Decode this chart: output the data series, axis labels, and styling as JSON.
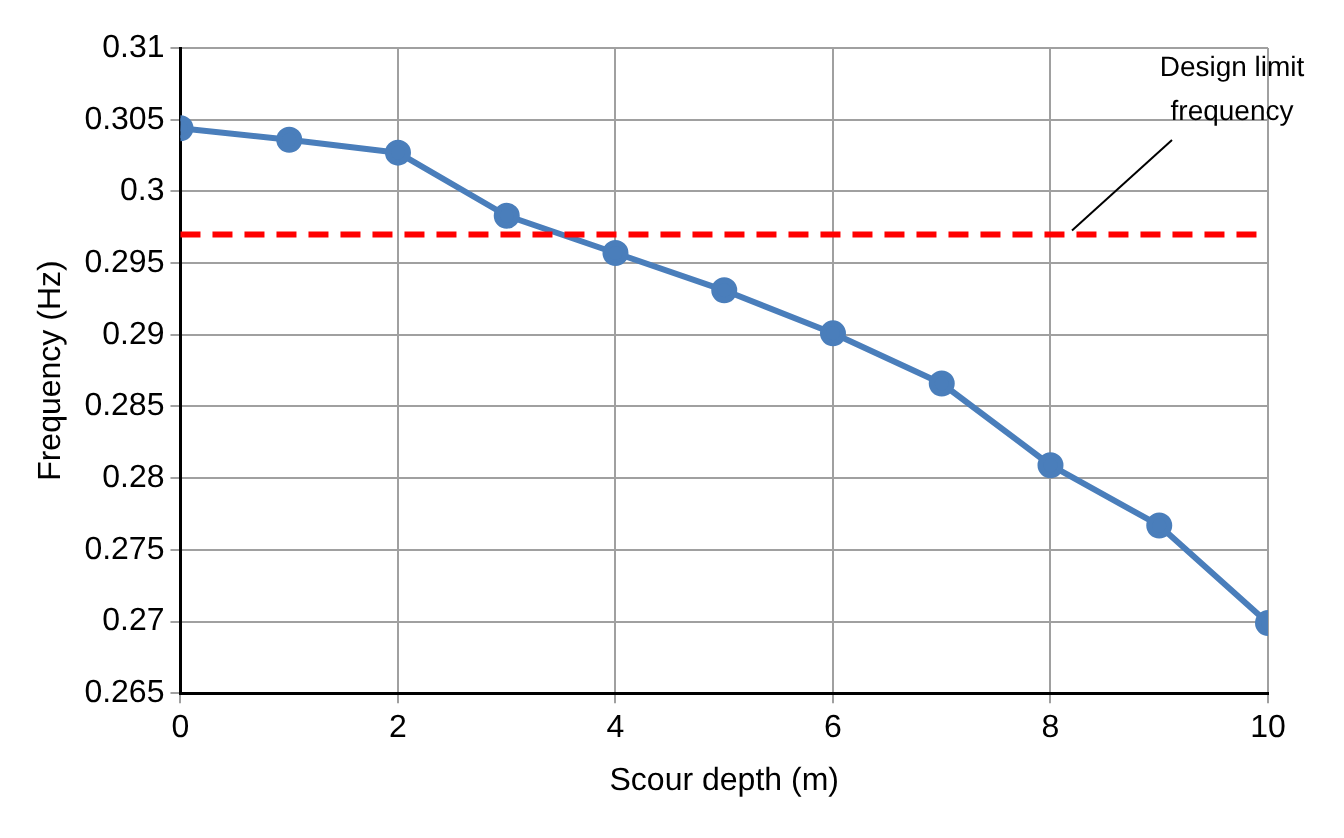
{
  "chart_data": {
    "type": "line",
    "xlabel": "Scour depth (m)",
    "ylabel": "Frequency (Hz)",
    "x": [
      0,
      1,
      2,
      3,
      4,
      5,
      6,
      7,
      8,
      9,
      10
    ],
    "series": [
      {
        "color": "#4a7ebb",
        "values": [
          0.3044,
          0.3036,
          0.3027,
          0.2983,
          0.2957,
          0.2931,
          0.2901,
          0.2866,
          0.2809,
          0.2767,
          0.2699
        ]
      }
    ],
    "xlim": [
      0,
      10
    ],
    "xticks": [
      0,
      2,
      4,
      6,
      8,
      10
    ],
    "ylim": [
      0.265,
      0.31
    ],
    "yticks": [
      0.265,
      0.27,
      0.275,
      0.28,
      0.285,
      0.29,
      0.295,
      0.3,
      0.305,
      0.31
    ],
    "ref_lines": [
      {
        "axis": "y",
        "value": 0.297,
        "label": "Design limit frequency",
        "color": "#ff0000",
        "line_style": "dashed"
      }
    ],
    "grid": true,
    "legend": false,
    "marker": "circle",
    "line_style": "solid"
  }
}
